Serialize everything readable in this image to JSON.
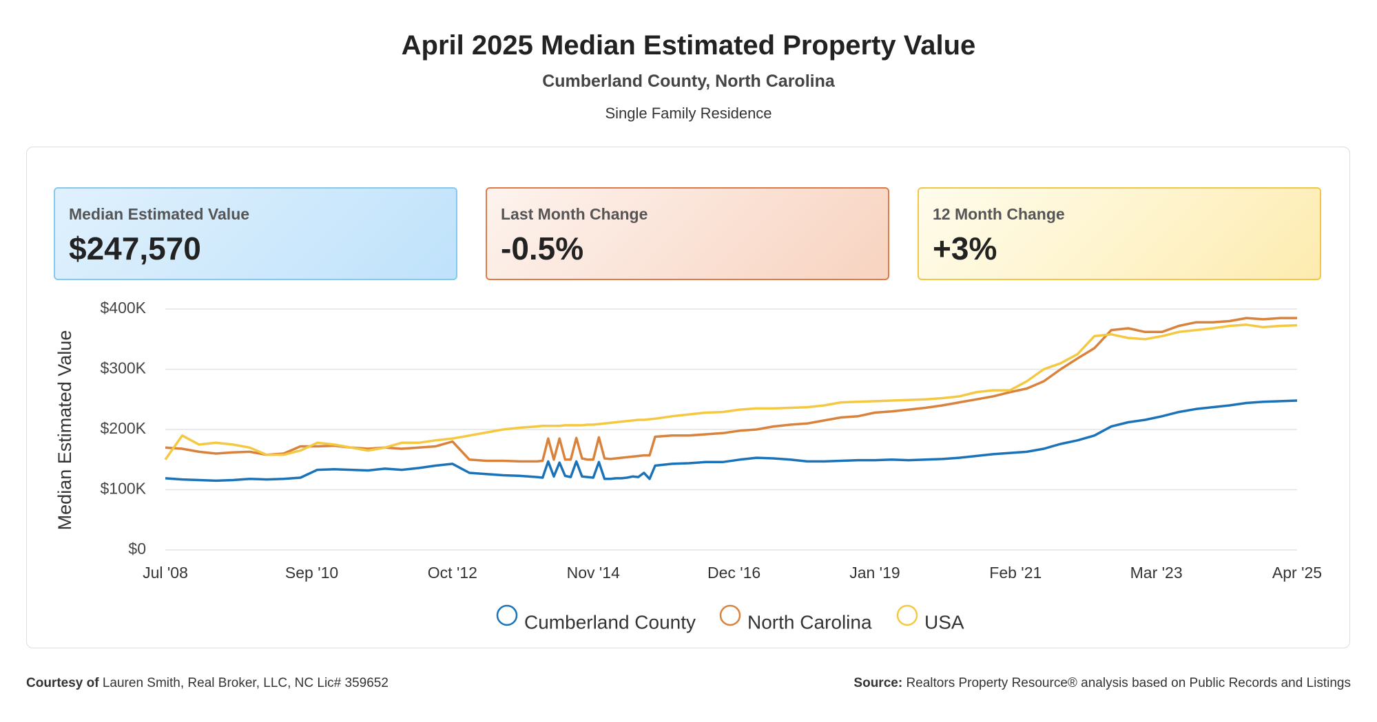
{
  "header": {
    "title": "April 2025 Median Estimated Property Value",
    "subtitle": "Cumberland County, North Carolina",
    "property_type": "Single Family Residence"
  },
  "cards": [
    {
      "label": "Median Estimated Value",
      "value": "$247,570"
    },
    {
      "label": "Last Month Change",
      "value": "-0.5%"
    },
    {
      "label": "12 Month Change",
      "value": "+3%"
    }
  ],
  "chart_data": {
    "type": "line",
    "y_label": "Median Estimated Value",
    "x": [
      "2008-07",
      "2008-10",
      "2009-01",
      "2009-04",
      "2009-07",
      "2009-10",
      "2010-01",
      "2010-04",
      "2010-07",
      "2010-10",
      "2011-01",
      "2011-04",
      "2011-07",
      "2011-10",
      "2012-01",
      "2012-04",
      "2012-07",
      "2012-10",
      "2013-01",
      "2013-04",
      "2013-07",
      "2013-10",
      "2014-01",
      "2014-02",
      "2014-03",
      "2014-04",
      "2014-05",
      "2014-06",
      "2014-07",
      "2014-08",
      "2014-09",
      "2014-10",
      "2014-11",
      "2014-12",
      "2015-01",
      "2015-02",
      "2015-03",
      "2015-04",
      "2015-05",
      "2015-06",
      "2015-07",
      "2015-08",
      "2015-09",
      "2015-10",
      "2016-01",
      "2016-04",
      "2016-07",
      "2016-10",
      "2017-01",
      "2017-04",
      "2017-07",
      "2017-10",
      "2018-01",
      "2018-04",
      "2018-07",
      "2018-10",
      "2019-01",
      "2019-04",
      "2019-07",
      "2019-10",
      "2020-01",
      "2020-04",
      "2020-07",
      "2020-10",
      "2021-01",
      "2021-04",
      "2021-07",
      "2021-10",
      "2022-01",
      "2022-04",
      "2022-07",
      "2022-10",
      "2023-01",
      "2023-04",
      "2023-07",
      "2023-10",
      "2024-01",
      "2024-04",
      "2024-07",
      "2024-10",
      "2025-01",
      "2025-04"
    ],
    "xlim": [
      "2008-07",
      "2025-04"
    ],
    "xticks": [
      {
        "value": "2008-07",
        "label": "Jul '08"
      },
      {
        "value": "2010-09",
        "label": "Sep '10"
      },
      {
        "value": "2012-10",
        "label": "Oct '12"
      },
      {
        "value": "2014-11",
        "label": "Nov '14"
      },
      {
        "value": "2016-12",
        "label": "Dec '16"
      },
      {
        "value": "2019-01",
        "label": "Jan '19"
      },
      {
        "value": "2021-02",
        "label": "Feb '21"
      },
      {
        "value": "2023-03",
        "label": "Mar '23"
      },
      {
        "value": "2025-04",
        "label": "Apr '25"
      }
    ],
    "ylim": [
      0,
      400000
    ],
    "yticks": [
      {
        "value": 0,
        "label": "$0"
      },
      {
        "value": 100000,
        "label": "$100K"
      },
      {
        "value": 200000,
        "label": "$200K"
      },
      {
        "value": 300000,
        "label": "$300K"
      },
      {
        "value": 400000,
        "label": "$400K"
      }
    ],
    "grid": true,
    "series": [
      {
        "name": "Cumberland County",
        "color": "#1a73b8",
        "values": [
          119000,
          117000,
          116000,
          115000,
          116000,
          118000,
          117000,
          118000,
          120000,
          133000,
          134000,
          133000,
          132000,
          135000,
          133000,
          136000,
          140000,
          143000,
          128000,
          126000,
          124000,
          123000,
          121000,
          120000,
          147000,
          122000,
          145000,
          123000,
          121000,
          147000,
          122000,
          121000,
          120000,
          146000,
          118000,
          118000,
          119000,
          119000,
          120000,
          122000,
          121000,
          128000,
          118000,
          140000,
          143000,
          144000,
          146000,
          146000,
          150000,
          153000,
          152000,
          150000,
          147000,
          147000,
          148000,
          149000,
          149000,
          150000,
          149000,
          150000,
          151000,
          153000,
          156000,
          159000,
          161000,
          163000,
          168000,
          176000,
          182000,
          190000,
          205000,
          212000,
          216000,
          222000,
          229000,
          234000,
          237000,
          240000,
          244000,
          246000,
          247000,
          248000
        ]
      },
      {
        "name": "North Carolina",
        "color": "#d9823b",
        "values": [
          170000,
          168000,
          163000,
          160000,
          162000,
          163000,
          158000,
          160000,
          172000,
          172000,
          173000,
          170000,
          168000,
          170000,
          168000,
          170000,
          172000,
          180000,
          150000,
          148000,
          148000,
          147000,
          147000,
          148000,
          185000,
          150000,
          185000,
          150000,
          150000,
          186000,
          152000,
          150000,
          150000,
          187000,
          152000,
          151000,
          152000,
          153000,
          154000,
          155000,
          156000,
          157000,
          157000,
          188000,
          190000,
          190000,
          192000,
          194000,
          198000,
          200000,
          205000,
          208000,
          210000,
          215000,
          220000,
          222000,
          228000,
          230000,
          233000,
          236000,
          240000,
          245000,
          250000,
          255000,
          262000,
          268000,
          280000,
          300000,
          318000,
          335000,
          365000,
          368000,
          362000,
          362000,
          372000,
          378000,
          378000,
          380000,
          385000,
          383000,
          385000,
          385000
        ]
      },
      {
        "name": "USA",
        "color": "#f5c842",
        "values": [
          150000,
          190000,
          175000,
          178000,
          175000,
          170000,
          158000,
          158000,
          165000,
          178000,
          175000,
          170000,
          165000,
          170000,
          178000,
          178000,
          182000,
          185000,
          190000,
          195000,
          200000,
          203000,
          205000,
          206000,
          206000,
          206000,
          206000,
          207000,
          207000,
          207000,
          207000,
          208000,
          208000,
          209000,
          210000,
          211000,
          212000,
          213000,
          214000,
          215000,
          216000,
          216000,
          217000,
          218000,
          222000,
          225000,
          228000,
          229000,
          233000,
          235000,
          235000,
          236000,
          237000,
          240000,
          245000,
          246000,
          247000,
          248000,
          249000,
          250000,
          252000,
          255000,
          262000,
          265000,
          265000,
          280000,
          300000,
          310000,
          325000,
          355000,
          358000,
          352000,
          350000,
          355000,
          362000,
          365000,
          368000,
          372000,
          374000,
          370000,
          372000,
          373000
        ]
      }
    ]
  },
  "footer": {
    "courtesy_label": "Courtesy of",
    "courtesy": "Lauren Smith, Real Broker, LLC, NC Lic# 359652",
    "source_label": "Source:",
    "source": "Realtors Property Resource® analysis based on Public Records and Listings"
  }
}
